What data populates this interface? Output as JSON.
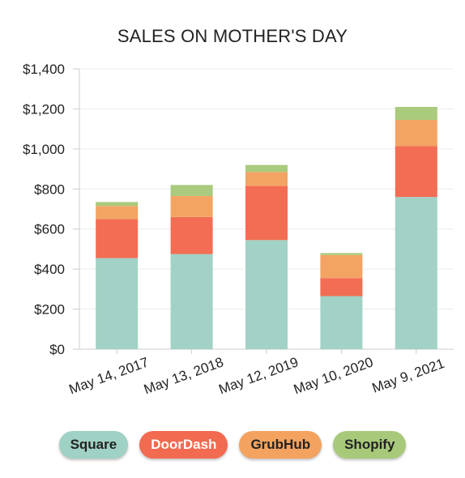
{
  "chart_data": {
    "type": "bar",
    "stacked": true,
    "title": "SALES ON MOTHER'S DAY",
    "xlabel": "",
    "ylabel": "",
    "categories": [
      "May 14, 2017",
      "May 13, 2018",
      "May 12, 2019",
      "May 10, 2020",
      "May 9, 2021"
    ],
    "series": [
      {
        "name": "Square",
        "color": "#9fd1c4",
        "values": [
          455,
          475,
          545,
          265,
          760
        ]
      },
      {
        "name": "DoorDash",
        "color": "#f26a50",
        "values": [
          195,
          185,
          270,
          90,
          255
        ]
      },
      {
        "name": "GrubHub",
        "color": "#f3a260",
        "values": [
          65,
          105,
          70,
          115,
          130
        ]
      },
      {
        "name": "Shopify",
        "color": "#a8c97a",
        "values": [
          20,
          55,
          35,
          10,
          65
        ]
      }
    ],
    "ylim": [
      0,
      1400
    ],
    "yticks": [
      0,
      200,
      400,
      600,
      800,
      1000,
      1200,
      1400
    ],
    "ytick_labels": [
      "$0",
      "$200",
      "$400",
      "$600",
      "$800",
      "$1,000",
      "$1,200",
      "$1,400"
    ],
    "grid": true,
    "legend": "bottom"
  },
  "legend_text_colors": [
    "#222222",
    "#ffffff",
    "#222222",
    "#222222"
  ]
}
